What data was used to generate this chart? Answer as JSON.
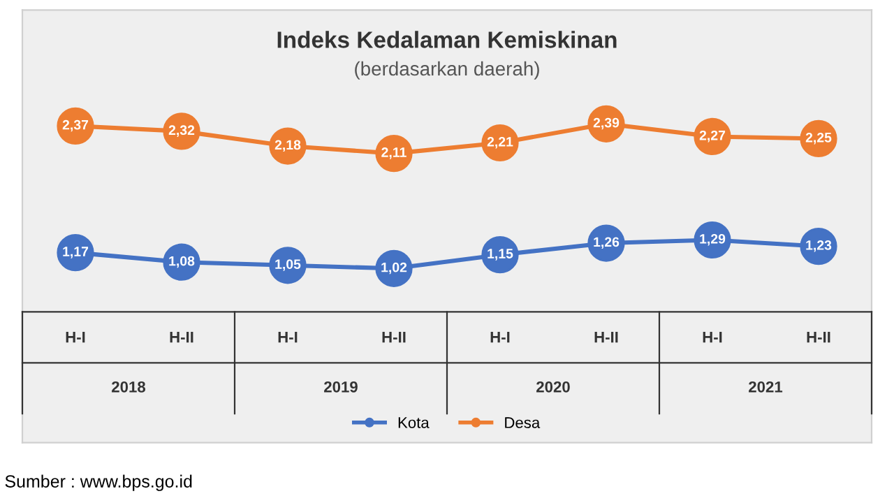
{
  "chart_data": {
    "type": "line",
    "title": "Indeks Kedalaman Kemiskinan",
    "subtitle": "(berdasarkan daerah)",
    "categories": [
      "H-I",
      "H-II",
      "H-I",
      "H-II",
      "H-I",
      "H-II",
      "H-I",
      "H-II"
    ],
    "series": [
      {
        "name": "Kota",
        "color": "#4472c4",
        "values": [
          1.17,
          1.08,
          1.05,
          1.02,
          1.15,
          1.26,
          1.29,
          1.23
        ],
        "value_labels": [
          "1,17",
          "1,08",
          "1,05",
          "1,02",
          "1,15",
          "1,26",
          "1,29",
          "1,23"
        ]
      },
      {
        "name": "Desa",
        "color": "#ed7d31",
        "values": [
          2.37,
          2.32,
          2.18,
          2.11,
          2.21,
          2.39,
          2.27,
          2.25
        ],
        "value_labels": [
          "2,37",
          "2,32",
          "2,18",
          "2,11",
          "2,21",
          "2,39",
          "2,27",
          "2,25"
        ]
      }
    ],
    "annotations": [
      "2018",
      "2019",
      "2020",
      "2021",
      "Sumber : www.bps.go.id"
    ],
    "marker": "circle",
    "line_style": "solid",
    "legend": "bottom",
    "grid": false
  }
}
